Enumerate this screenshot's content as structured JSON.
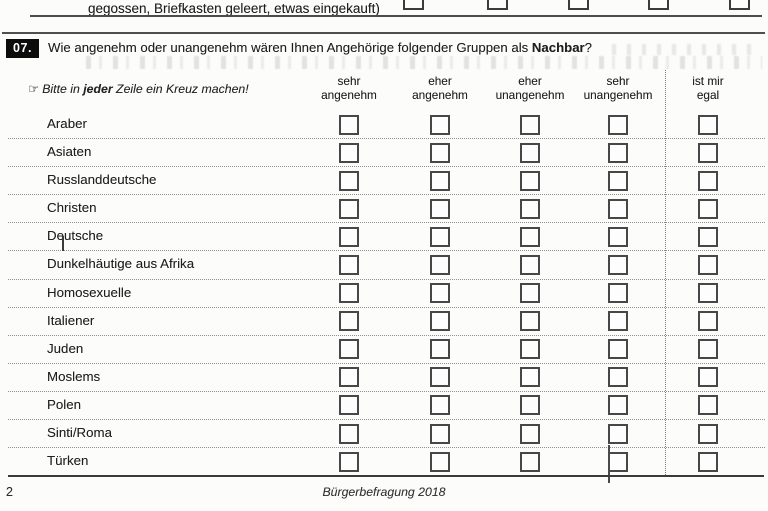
{
  "prev_question": {
    "text": "gegossen, Briefkasten geleert, etwas eingekauft)",
    "checkbox_count": 5
  },
  "question": {
    "number": "07.",
    "text_before": "Wie angenehm oder unangenehm wären Ihnen Angehörige folgender Gruppen als ",
    "text_bold": "Nachbar",
    "text_after": "?"
  },
  "instruction": {
    "hand_icon": "☞",
    "text_before": "Bitte in ",
    "text_bold": "jeder",
    "text_after": " Zeile ein Kreuz machen!"
  },
  "columns": [
    {
      "line1": "sehr",
      "line2": "angenehm"
    },
    {
      "line1": "eher",
      "line2": "angenehm"
    },
    {
      "line1": "eher",
      "line2": "unangenehm"
    },
    {
      "line1": "sehr",
      "line2": "unangenehm"
    },
    {
      "line1": "ist mir",
      "line2": "egal"
    }
  ],
  "rows": [
    "Araber",
    "Asiaten",
    "Russlanddeutsche",
    "Christen",
    "Deutsche",
    "Dunkelhäutige aus Afrika",
    "Homosexuelle",
    "Italiener",
    "Juden",
    "Moslems",
    "Polen",
    "Sinti/Roma",
    "Türken"
  ],
  "footer": {
    "page_number": "2",
    "title": "Bürgerbefragung 2018"
  },
  "colors": {
    "ink": "#262626",
    "badge_bg": "#0c0c0c",
    "badge_text": "#ffffff",
    "rule": "#3e3e3e",
    "dotted": "#8f8f8f",
    "paper": "#fcfcfb"
  }
}
